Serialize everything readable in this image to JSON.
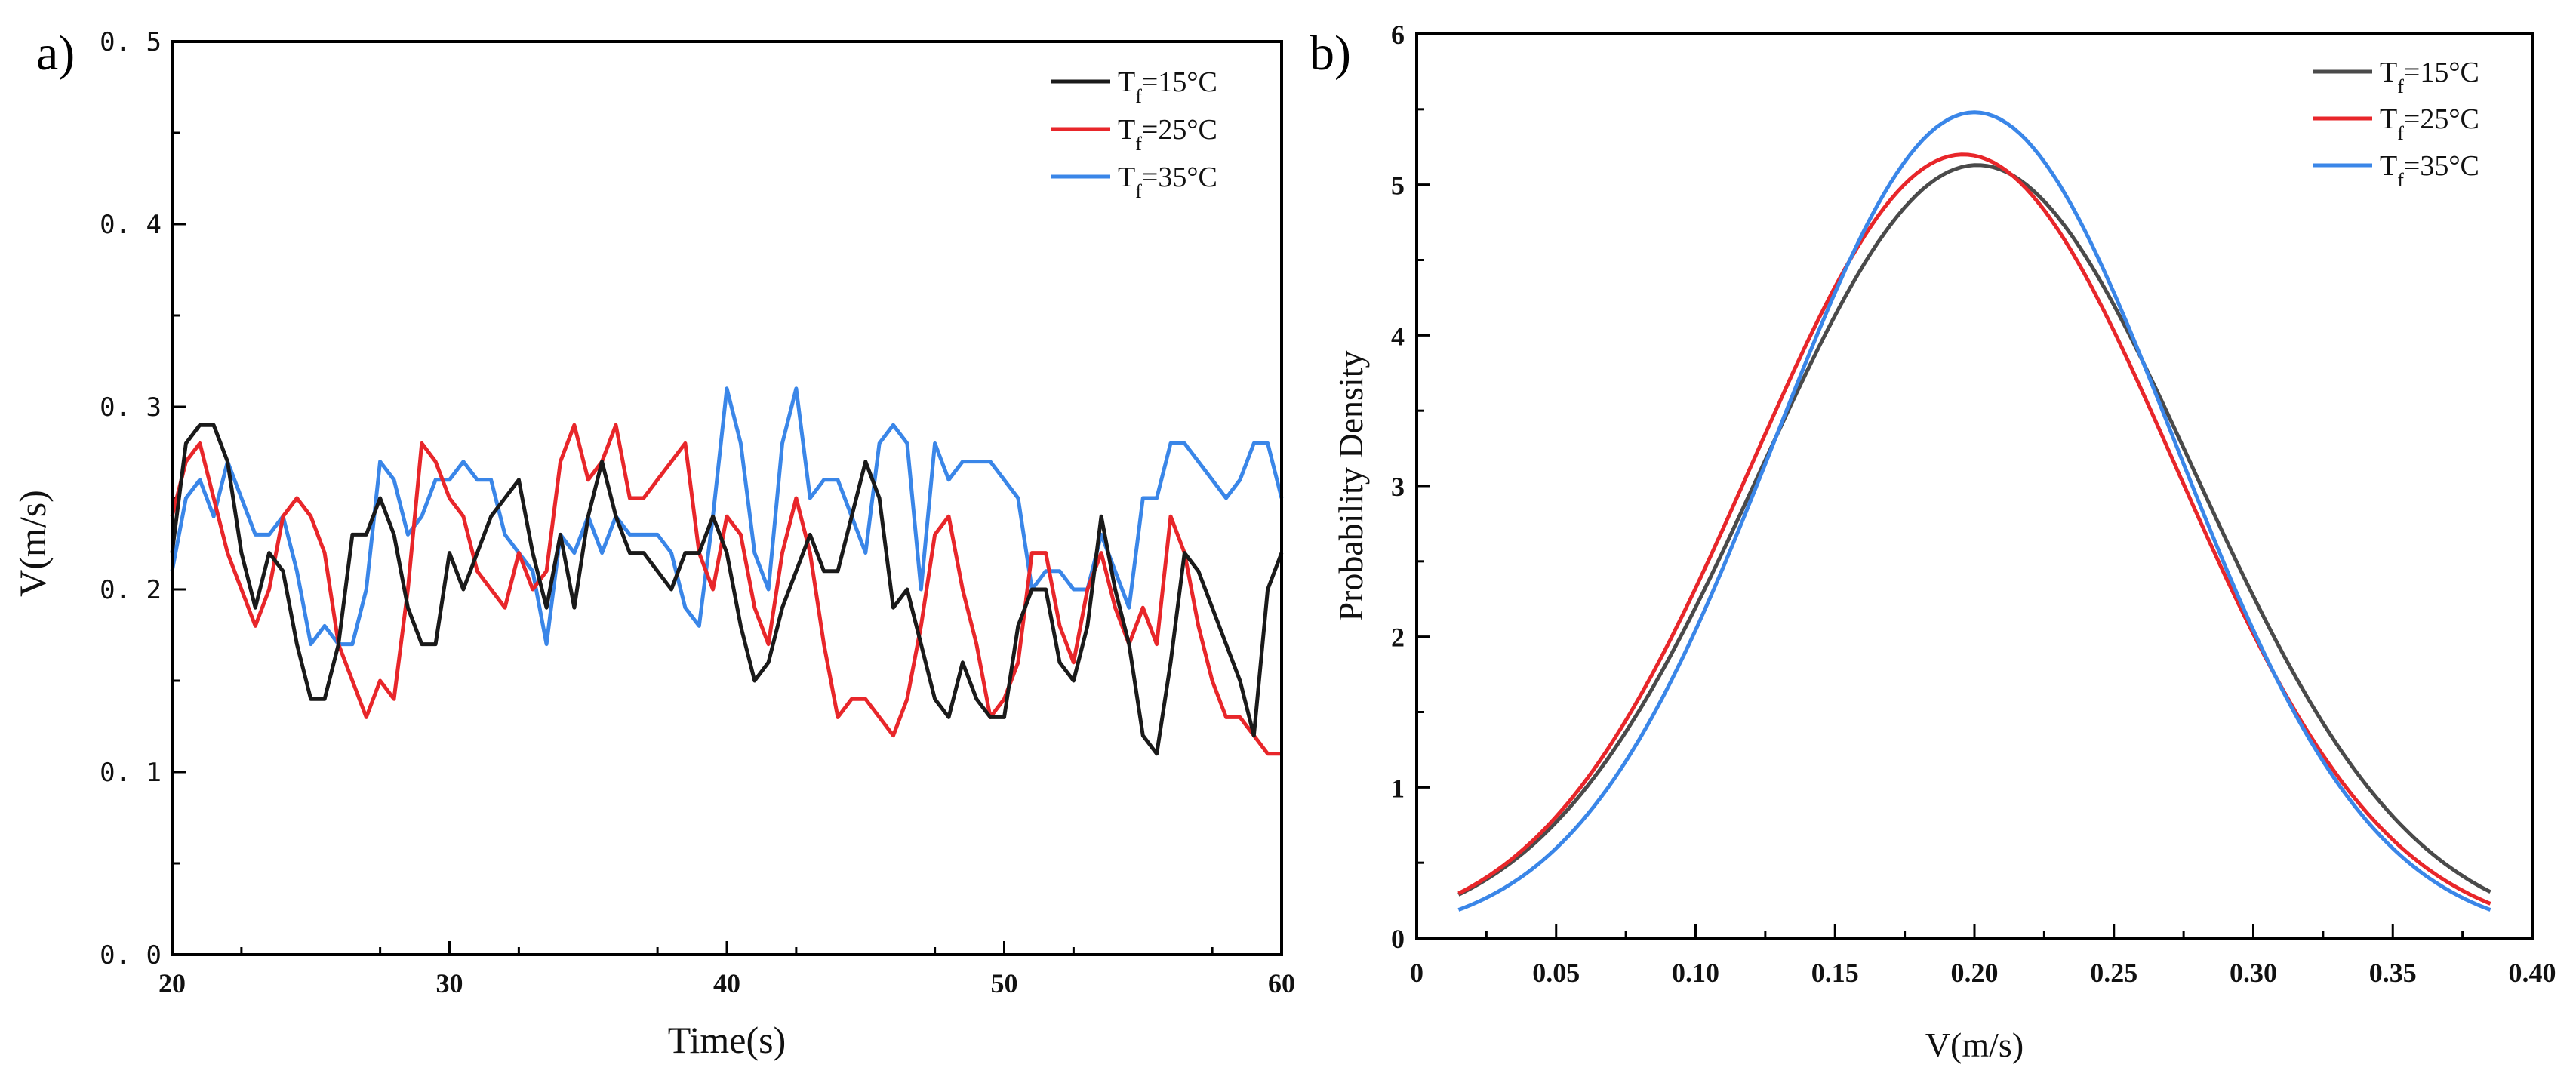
{
  "chart_data": [
    {
      "panel": "a)",
      "type": "line",
      "title": "",
      "xlabel": "Time(s)",
      "ylabel": "V(m/s)",
      "xlim": [
        20,
        60
      ],
      "ylim": [
        0.0,
        0.5
      ],
      "xticks": [
        "20",
        "30",
        "40",
        "50",
        "60"
      ],
      "yticks": [
        "0. 0",
        "0. 1",
        "0. 2",
        "0. 3",
        "0. 4",
        "0. 5"
      ],
      "legend_position": "top-right",
      "series": [
        {
          "name": "T_f=15°C",
          "label_main": "T",
          "label_sub": "f",
          "label_rest": "=15°C",
          "color": "#1a1a1a",
          "x": [
            20,
            20.5,
            21,
            21.5,
            22,
            22.5,
            23,
            23.5,
            24,
            24.5,
            25,
            25.5,
            26,
            26.5,
            27,
            27.5,
            28,
            28.5,
            29,
            29.5,
            30,
            30.5,
            31,
            31.5,
            32,
            32.5,
            33,
            33.5,
            34,
            34.5,
            35,
            35.5,
            36,
            36.5,
            37,
            37.5,
            38,
            38.5,
            39,
            39.5,
            40,
            40.5,
            41,
            41.5,
            42,
            42.5,
            43,
            43.5,
            44,
            44.5,
            45,
            45.5,
            46,
            46.5,
            47,
            47.5,
            48,
            48.5,
            49,
            49.5,
            50,
            50.5,
            51,
            51.5,
            52,
            52.5,
            53,
            53.5,
            54,
            54.5,
            55,
            55.5,
            56,
            56.5,
            57,
            57.5,
            58,
            58.5,
            59,
            59.5,
            60
          ],
          "y": [
            0.22,
            0.28,
            0.29,
            0.29,
            0.27,
            0.22,
            0.19,
            0.22,
            0.21,
            0.17,
            0.14,
            0.14,
            0.17,
            0.23,
            0.23,
            0.25,
            0.23,
            0.19,
            0.17,
            0.17,
            0.22,
            0.2,
            0.22,
            0.24,
            0.25,
            0.26,
            0.22,
            0.19,
            0.23,
            0.19,
            0.24,
            0.27,
            0.24,
            0.22,
            0.22,
            0.21,
            0.2,
            0.22,
            0.22,
            0.24,
            0.22,
            0.18,
            0.15,
            0.16,
            0.19,
            0.21,
            0.23,
            0.21,
            0.21,
            0.24,
            0.27,
            0.25,
            0.19,
            0.2,
            0.17,
            0.14,
            0.13,
            0.16,
            0.14,
            0.13,
            0.13,
            0.18,
            0.2,
            0.2,
            0.16,
            0.15,
            0.18,
            0.24,
            0.2,
            0.17,
            0.12,
            0.11,
            0.16,
            0.22,
            0.21,
            0.19,
            0.17,
            0.15,
            0.12,
            0.2,
            0.22
          ]
        },
        {
          "name": "T_f=25°C",
          "label_main": "T",
          "label_sub": "f",
          "label_rest": "=25°C",
          "color": "#e8262a",
          "x": [
            20,
            20.5,
            21,
            21.5,
            22,
            22.5,
            23,
            23.5,
            24,
            24.5,
            25,
            25.5,
            26,
            26.5,
            27,
            27.5,
            28,
            28.5,
            29,
            29.5,
            30,
            30.5,
            31,
            31.5,
            32,
            32.5,
            33,
            33.5,
            34,
            34.5,
            35,
            35.5,
            36,
            36.5,
            37,
            37.5,
            38,
            38.5,
            39,
            39.5,
            40,
            40.5,
            41,
            41.5,
            42,
            42.5,
            43,
            43.5,
            44,
            44.5,
            45,
            45.5,
            46,
            46.5,
            47,
            47.5,
            48,
            48.5,
            49,
            49.5,
            50,
            50.5,
            51,
            51.5,
            52,
            52.5,
            53,
            53.5,
            54,
            54.5,
            55,
            55.5,
            56,
            56.5,
            57,
            57.5,
            58,
            58.5,
            59,
            59.5,
            60
          ],
          "y": [
            0.24,
            0.27,
            0.28,
            0.25,
            0.22,
            0.2,
            0.18,
            0.2,
            0.24,
            0.25,
            0.24,
            0.22,
            0.17,
            0.15,
            0.13,
            0.15,
            0.14,
            0.2,
            0.28,
            0.27,
            0.25,
            0.24,
            0.21,
            0.2,
            0.19,
            0.22,
            0.2,
            0.21,
            0.27,
            0.29,
            0.26,
            0.27,
            0.29,
            0.25,
            0.25,
            0.26,
            0.27,
            0.28,
            0.22,
            0.2,
            0.24,
            0.23,
            0.19,
            0.17,
            0.22,
            0.25,
            0.22,
            0.17,
            0.13,
            0.14,
            0.14,
            0.13,
            0.12,
            0.14,
            0.18,
            0.23,
            0.24,
            0.2,
            0.17,
            0.13,
            0.14,
            0.16,
            0.22,
            0.22,
            0.18,
            0.16,
            0.2,
            0.22,
            0.19,
            0.17,
            0.19,
            0.17,
            0.24,
            0.22,
            0.18,
            0.15,
            0.13,
            0.13,
            0.12,
            0.11,
            0.11
          ]
        },
        {
          "name": "T_f=35°C",
          "label_main": "T",
          "label_sub": "f",
          "label_rest": "=35°C",
          "color": "#3a86e8",
          "x": [
            20,
            20.5,
            21,
            21.5,
            22,
            22.5,
            23,
            23.5,
            24,
            24.5,
            25,
            25.5,
            26,
            26.5,
            27,
            27.5,
            28,
            28.5,
            29,
            29.5,
            30,
            30.5,
            31,
            31.5,
            32,
            32.5,
            33,
            33.5,
            34,
            34.5,
            35,
            35.5,
            36,
            36.5,
            37,
            37.5,
            38,
            38.5,
            39,
            39.5,
            40,
            40.5,
            41,
            41.5,
            42,
            42.5,
            43,
            43.5,
            44,
            44.5,
            45,
            45.5,
            46,
            46.5,
            47,
            47.5,
            48,
            48.5,
            49,
            49.5,
            50,
            50.5,
            51,
            51.5,
            52,
            52.5,
            53,
            53.5,
            54,
            54.5,
            55,
            55.5,
            56,
            56.5,
            57,
            57.5,
            58,
            58.5,
            59,
            59.5,
            60
          ],
          "y": [
            0.21,
            0.25,
            0.26,
            0.24,
            0.27,
            0.25,
            0.23,
            0.23,
            0.24,
            0.21,
            0.17,
            0.18,
            0.17,
            0.17,
            0.2,
            0.27,
            0.26,
            0.23,
            0.24,
            0.26,
            0.26,
            0.27,
            0.26,
            0.26,
            0.23,
            0.22,
            0.21,
            0.17,
            0.23,
            0.22,
            0.24,
            0.22,
            0.24,
            0.23,
            0.23,
            0.23,
            0.22,
            0.19,
            0.18,
            0.24,
            0.31,
            0.28,
            0.22,
            0.2,
            0.28,
            0.31,
            0.25,
            0.26,
            0.26,
            0.24,
            0.22,
            0.28,
            0.29,
            0.28,
            0.2,
            0.28,
            0.26,
            0.27,
            0.27,
            0.27,
            0.26,
            0.25,
            0.2,
            0.21,
            0.21,
            0.2,
            0.2,
            0.23,
            0.21,
            0.19,
            0.25,
            0.25,
            0.28,
            0.28,
            0.27,
            0.26,
            0.25,
            0.26,
            0.28,
            0.28,
            0.25
          ]
        }
      ]
    },
    {
      "panel": "b)",
      "type": "line",
      "title": "",
      "xlabel": "V(m/s)",
      "ylabel": "Probability Density",
      "xlim": [
        0,
        0.4
      ],
      "ylim": [
        0,
        6
      ],
      "xticks": [
        "0",
        "0.05",
        "0.10",
        "0.15",
        "0.20",
        "0.25",
        "0.30",
        "0.35",
        "0.40"
      ],
      "yticks": [
        "0",
        "1",
        "2",
        "3",
        "4",
        "5",
        "6"
      ],
      "legend_position": "top-right",
      "series": [
        {
          "name": "T_f=15°C",
          "label_main": "T",
          "label_sub": "f",
          "label_rest": "=15°C",
          "color": "#4a4a4a",
          "peak": 5.13,
          "mean": 0.201,
          "std": 0.0775,
          "x_range": [
            0.015,
            0.385
          ],
          "y_at_ends": [
            0.35,
            0.32
          ]
        },
        {
          "name": "T_f=25°C",
          "label_main": "T",
          "label_sub": "f",
          "label_rest": "=25°C",
          "color": "#e8262a",
          "peak": 5.2,
          "mean": 0.196,
          "std": 0.0756,
          "x_range": [
            0.015,
            0.385
          ],
          "y_at_ends": [
            0.35,
            0.22
          ]
        },
        {
          "name": "T_f=35°C",
          "label_main": "T",
          "label_sub": "f",
          "label_rest": "=35°C",
          "color": "#3a86e8",
          "peak": 5.48,
          "mean": 0.2,
          "std": 0.0712,
          "x_range": [
            0.015,
            0.385
          ],
          "y_at_ends": [
            0.25,
            0.2
          ]
        }
      ]
    }
  ]
}
